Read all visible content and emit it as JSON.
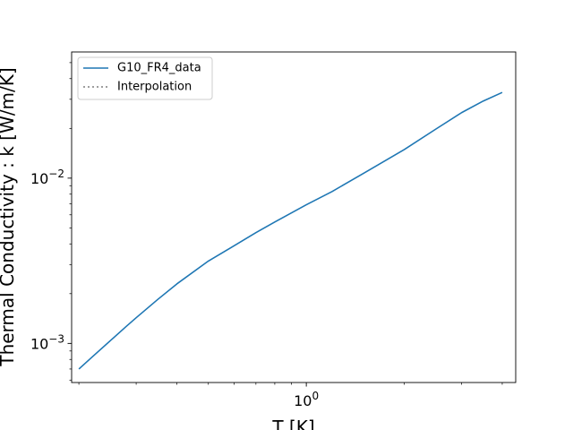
{
  "chart_data": {
    "type": "line",
    "xlabel": "T [K]",
    "ylabel": "Thermal Conductivity : k [W/m/K]",
    "xscale": "log",
    "yscale": "log",
    "xlim": [
      0.19,
      4.4
    ],
    "ylim": [
      0.00058,
      0.058
    ],
    "grid": false,
    "legend_position": "top-left",
    "x_major_ticks": [
      {
        "value": 1,
        "base": "10",
        "exp": "0"
      }
    ],
    "y_major_ticks": [
      {
        "value": 0.001,
        "base": "10",
        "exp": "−3"
      },
      {
        "value": 0.01,
        "base": "10",
        "exp": "−2"
      }
    ],
    "x_minor_ticks": [
      0.2,
      0.3,
      0.4,
      0.5,
      0.6,
      0.7,
      0.8,
      0.9,
      2,
      3,
      4
    ],
    "y_minor_ticks": [
      0.0006,
      0.0007,
      0.0008,
      0.0009,
      0.002,
      0.003,
      0.004,
      0.005,
      0.006,
      0.007,
      0.008,
      0.009,
      0.02,
      0.03,
      0.04,
      0.05
    ],
    "series": [
      {
        "name": "G10_FR4_data",
        "color": "#1f77b4",
        "linestyle": "solid",
        "x": [
          0.2,
          0.22,
          0.25,
          0.28,
          0.3,
          0.35,
          0.4,
          0.5,
          0.6,
          0.7,
          0.8,
          1.0,
          1.2,
          1.5,
          2.0,
          2.5,
          3.0,
          3.5,
          4.0
        ],
        "y": [
          0.0007,
          0.00083,
          0.00104,
          0.00127,
          0.00143,
          0.00185,
          0.00229,
          0.00315,
          0.0039,
          0.00468,
          0.00543,
          0.0069,
          0.0083,
          0.0107,
          0.0149,
          0.0198,
          0.0249,
          0.0293,
          0.033
        ]
      },
      {
        "name": "Interpolation",
        "color": "#7f7f7f",
        "linestyle": "dotted",
        "x": [],
        "y": []
      }
    ]
  }
}
